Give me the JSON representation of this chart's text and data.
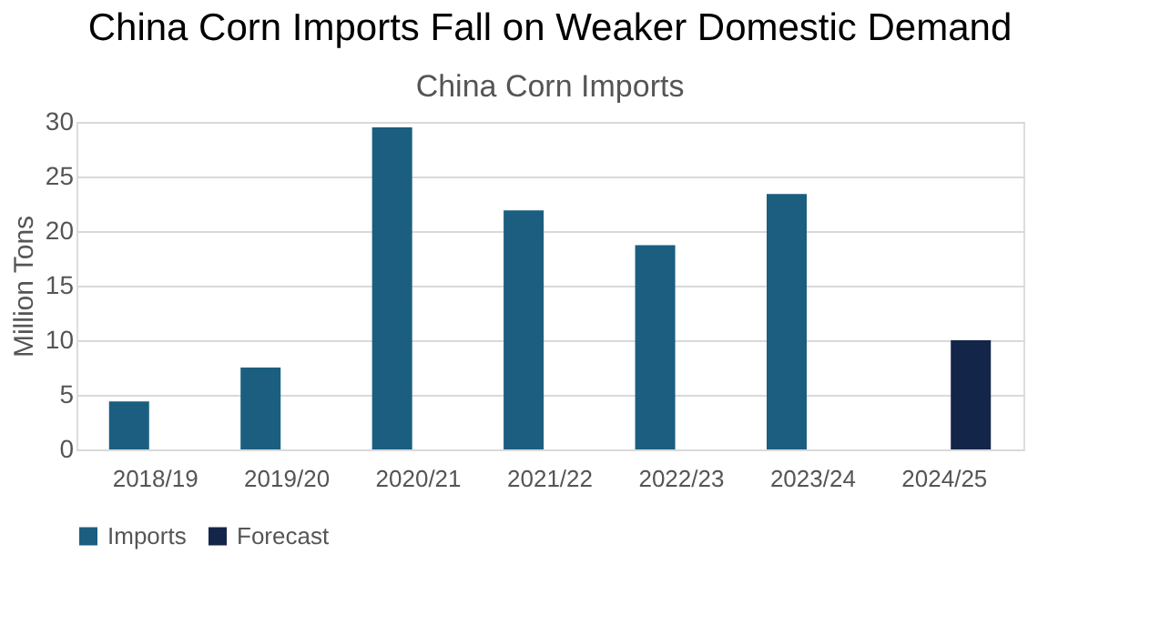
{
  "chart_data": {
    "type": "bar",
    "title": "China Corn Imports Fall on Weaker Domestic Demand",
    "subtitle": "China Corn Imports",
    "ylabel": "Million Tons",
    "categories": [
      "2018/19",
      "2019/20",
      "2020/21",
      "2021/22",
      "2022/23",
      "2023/24",
      "2024/25"
    ],
    "series": [
      {
        "name": "Imports",
        "color": "#1b5e80",
        "values": [
          4.4,
          7.5,
          29.5,
          21.9,
          18.7,
          23.4,
          null
        ]
      },
      {
        "name": "Forecast",
        "color": "#14254a",
        "values": [
          null,
          null,
          null,
          null,
          null,
          null,
          10.0
        ]
      }
    ],
    "ylim": [
      0,
      30
    ],
    "yticks": [
      0,
      5,
      10,
      15,
      20,
      25,
      30
    ],
    "grid": "y",
    "legend": "bottom"
  }
}
